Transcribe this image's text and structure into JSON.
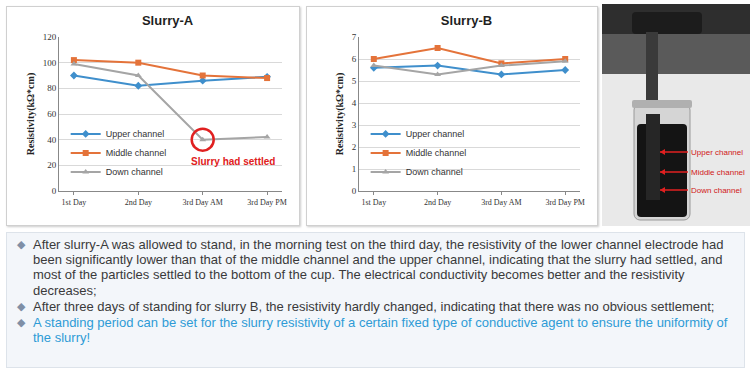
{
  "chart_data": [
    {
      "type": "line",
      "title": "Slurry-A",
      "y_label": "Resistivity(kΩ*cm)",
      "categories": [
        "1st Day",
        "2nd Day",
        "3rd Day AM",
        "3rd Day PM"
      ],
      "series": [
        {
          "name": "Upper channel",
          "color": "#3f8fcc",
          "marker": "diamond",
          "values": [
            90,
            82,
            86,
            89
          ]
        },
        {
          "name": "Middle channel",
          "color": "#e4733a",
          "marker": "square",
          "values": [
            102,
            100,
            90,
            88
          ]
        },
        {
          "name": "Down channel",
          "color": "#a5a5a5",
          "marker": "triangle-up",
          "values": [
            99,
            90,
            40,
            42
          ]
        }
      ],
      "ylim": [
        0,
        120
      ],
      "yticks": [
        0,
        20,
        40,
        60,
        80,
        100,
        120
      ],
      "grid": true,
      "legend": "lower left",
      "annotations": [
        {
          "text": "Slurry had settled",
          "category": "3rd Day AM",
          "series": "Down channel",
          "color": "#e02020"
        }
      ]
    },
    {
      "type": "line",
      "title": "Slurry-B",
      "y_label": "Resistivity(kΩ*cm)",
      "categories": [
        "1st Day",
        "2nd Day",
        "3rd Day AM",
        "3rd Day PM"
      ],
      "series": [
        {
          "name": "Upper channel",
          "color": "#3f8fcc",
          "marker": "diamond",
          "values": [
            5.6,
            5.7,
            5.3,
            5.5
          ]
        },
        {
          "name": "Middle channel",
          "color": "#e4733a",
          "marker": "square",
          "values": [
            6.0,
            6.5,
            5.8,
            6.0
          ]
        },
        {
          "name": "Down channel",
          "color": "#a5a5a5",
          "marker": "triangle-up",
          "values": [
            5.7,
            5.3,
            5.7,
            5.9
          ]
        }
      ],
      "ylim": [
        0,
        7
      ],
      "yticks": [
        0,
        1,
        2,
        3,
        4,
        5,
        6,
        7
      ],
      "grid": true,
      "legend": "lower left"
    }
  ],
  "photo": {
    "labels": [
      "Upper channel",
      "Middle channel",
      "Down channel"
    ]
  },
  "notes": [
    "After slurry-A was allowed to stand, in the morning test on the third day, the resistivity of the lower channel electrode had been significantly lower than that of the middle channel and the upper channel, indicating that the slurry had settled, and most of the particles settled to the bottom of the cup. The electrical conductivity becomes better and the resistivity decreases;",
    "After three days of standing for slurry B, the resistivity hardly changed, indicating that there was no obvious settlement;",
    "A standing period can be set for the slurry resistivity of a certain fixed type of conductive agent to ensure the uniformity of the slurry!"
  ]
}
